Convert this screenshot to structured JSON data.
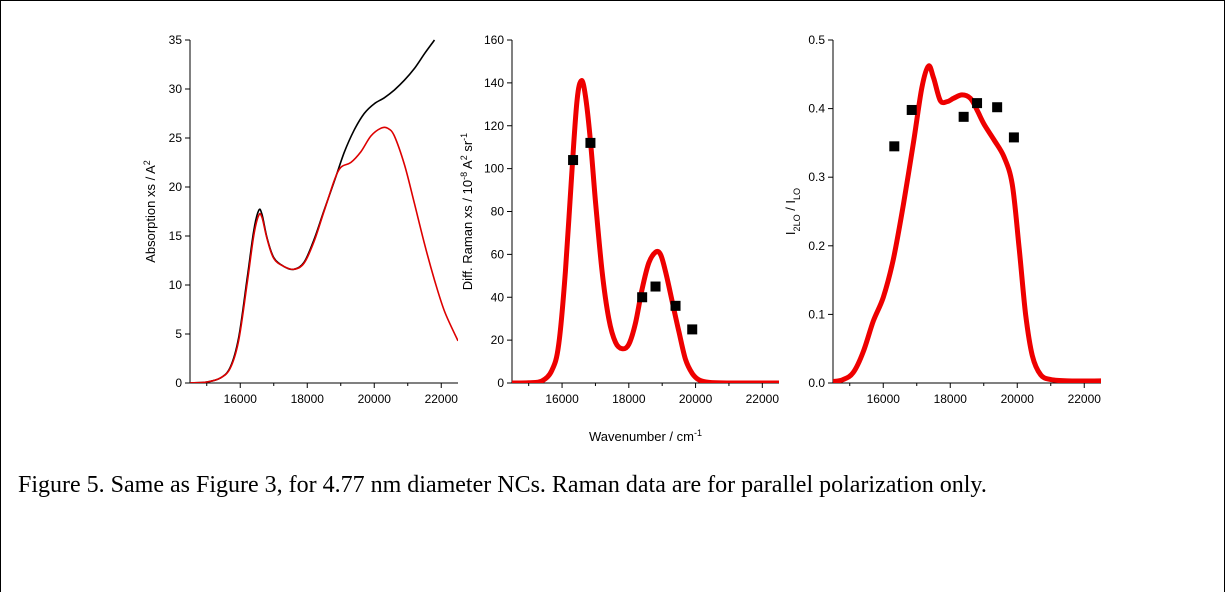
{
  "caption": "Figure 5.  Same as Figure 3, for 4.77 nm diameter NCs.  Raman data are for parallel polarization only.",
  "chart_data": [
    {
      "type": "line",
      "ylabel": "Absorption xs / A",
      "ylabel_sup": "2",
      "xlim": [
        14500,
        22500
      ],
      "ylim": [
        0,
        35
      ],
      "xticks": [
        16000,
        18000,
        20000,
        22000
      ],
      "yticks": [
        0,
        5,
        10,
        15,
        20,
        25,
        30,
        35
      ],
      "series": [
        {
          "color": "#000000",
          "points": [
            [
              14500,
              0
            ],
            [
              15000,
              0.1
            ],
            [
              15400,
              0.5
            ],
            [
              15700,
              1.6
            ],
            [
              15950,
              4.6
            ],
            [
              16200,
              10.5
            ],
            [
              16400,
              15.5
            ],
            [
              16550,
              17.6
            ],
            [
              16650,
              17.2
            ],
            [
              16800,
              14.8
            ],
            [
              17000,
              12.8
            ],
            [
              17300,
              11.9
            ],
            [
              17600,
              11.6
            ],
            [
              17900,
              12.3
            ],
            [
              18200,
              14.6
            ],
            [
              18500,
              17.6
            ],
            [
              18800,
              20.5
            ],
            [
              19100,
              23.5
            ],
            [
              19400,
              25.8
            ],
            [
              19700,
              27.5
            ],
            [
              20000,
              28.5
            ],
            [
              20300,
              29.1
            ],
            [
              20600,
              29.9
            ],
            [
              20900,
              30.9
            ],
            [
              21200,
              32.1
            ],
            [
              21500,
              33.6
            ],
            [
              21800,
              35.0
            ]
          ]
        },
        {
          "color": "#dd0000",
          "points": [
            [
              14500,
              0
            ],
            [
              15000,
              0.1
            ],
            [
              15400,
              0.5
            ],
            [
              15700,
              1.5
            ],
            [
              15950,
              4.3
            ],
            [
              16200,
              10.0
            ],
            [
              16400,
              15.0
            ],
            [
              16550,
              17.1
            ],
            [
              16650,
              16.9
            ],
            [
              16800,
              14.7
            ],
            [
              17000,
              12.7
            ],
            [
              17300,
              11.9
            ],
            [
              17600,
              11.6
            ],
            [
              17900,
              12.2
            ],
            [
              18200,
              14.4
            ],
            [
              18500,
              17.5
            ],
            [
              18800,
              20.6
            ],
            [
              19000,
              22.0
            ],
            [
              19300,
              22.5
            ],
            [
              19600,
              23.6
            ],
            [
              19900,
              25.2
            ],
            [
              20200,
              26.0
            ],
            [
              20400,
              26.0
            ],
            [
              20600,
              25.2
            ],
            [
              20900,
              22.3
            ],
            [
              21200,
              18.3
            ],
            [
              21500,
              14.2
            ],
            [
              21800,
              10.5
            ],
            [
              22100,
              7.3
            ],
            [
              22500,
              4.3
            ]
          ]
        }
      ]
    },
    {
      "type": "line+scatter",
      "ylabel_parts": [
        "Diff. Raman xs / 10",
        "-8",
        " A",
        "2",
        " sr",
        "-1"
      ],
      "xlabel": "Wavenumber / cm",
      "xlabel_sup": "-1",
      "xlim": [
        14500,
        22500
      ],
      "ylim": [
        0,
        160
      ],
      "xticks": [
        16000,
        18000,
        20000,
        22000
      ],
      "yticks": [
        0,
        20,
        40,
        60,
        80,
        100,
        120,
        140,
        160
      ],
      "line": {
        "color": "#ee0000",
        "points": [
          [
            14500,
            0
          ],
          [
            15000,
            0.1
          ],
          [
            15400,
            1
          ],
          [
            15700,
            6
          ],
          [
            15900,
            18
          ],
          [
            16100,
            52
          ],
          [
            16300,
            100
          ],
          [
            16450,
            132
          ],
          [
            16580,
            141
          ],
          [
            16700,
            134
          ],
          [
            16850,
            113
          ],
          [
            17000,
            85
          ],
          [
            17200,
            52
          ],
          [
            17400,
            30
          ],
          [
            17600,
            19
          ],
          [
            17800,
            16
          ],
          [
            18000,
            18
          ],
          [
            18200,
            28
          ],
          [
            18400,
            44
          ],
          [
            18600,
            56
          ],
          [
            18800,
            61
          ],
          [
            18950,
            60
          ],
          [
            19100,
            52
          ],
          [
            19300,
            38
          ],
          [
            19500,
            24
          ],
          [
            19700,
            11
          ],
          [
            19900,
            4.5
          ],
          [
            20100,
            1.5
          ],
          [
            20400,
            0.3
          ],
          [
            21000,
            0
          ],
          [
            22500,
            0
          ]
        ]
      },
      "markers": [
        [
          16330,
          104
        ],
        [
          16850,
          112
        ],
        [
          18400,
          40
        ],
        [
          18800,
          45
        ],
        [
          19400,
          36
        ],
        [
          19900,
          25
        ]
      ]
    },
    {
      "type": "line+scatter",
      "ylabel_main": "I",
      "ylabel_sub1": "2LO",
      "ylabel_mid": " / I",
      "ylabel_sub2": "LO",
      "xlim": [
        14500,
        22500
      ],
      "ylim": [
        0,
        0.5
      ],
      "xticks": [
        16000,
        18000,
        20000,
        22000
      ],
      "yticks": [
        0.0,
        0.1,
        0.2,
        0.3,
        0.4,
        0.5
      ],
      "ytick_labels": [
        "0.0",
        "0.1",
        "0.2",
        "0.3",
        "0.4",
        "0.5"
      ],
      "line": {
        "color": "#ee0000",
        "points": [
          [
            14500,
            0.002
          ],
          [
            14800,
            0.005
          ],
          [
            15100,
            0.015
          ],
          [
            15400,
            0.045
          ],
          [
            15700,
            0.09
          ],
          [
            16000,
            0.125
          ],
          [
            16300,
            0.18
          ],
          [
            16600,
            0.26
          ],
          [
            16900,
            0.35
          ],
          [
            17150,
            0.43
          ],
          [
            17350,
            0.462
          ],
          [
            17500,
            0.445
          ],
          [
            17700,
            0.412
          ],
          [
            17900,
            0.41
          ],
          [
            18100,
            0.415
          ],
          [
            18350,
            0.42
          ],
          [
            18600,
            0.415
          ],
          [
            18800,
            0.398
          ],
          [
            19000,
            0.378
          ],
          [
            19300,
            0.355
          ],
          [
            19600,
            0.33
          ],
          [
            19850,
            0.29
          ],
          [
            20050,
            0.2
          ],
          [
            20250,
            0.1
          ],
          [
            20450,
            0.04
          ],
          [
            20700,
            0.012
          ],
          [
            21000,
            0.005
          ],
          [
            21500,
            0.003
          ],
          [
            22500,
            0.003
          ]
        ]
      },
      "markers": [
        [
          16330,
          0.345
        ],
        [
          16850,
          0.398
        ],
        [
          18400,
          0.388
        ],
        [
          18800,
          0.408
        ],
        [
          19400,
          0.402
        ],
        [
          19900,
          0.358
        ]
      ]
    }
  ]
}
